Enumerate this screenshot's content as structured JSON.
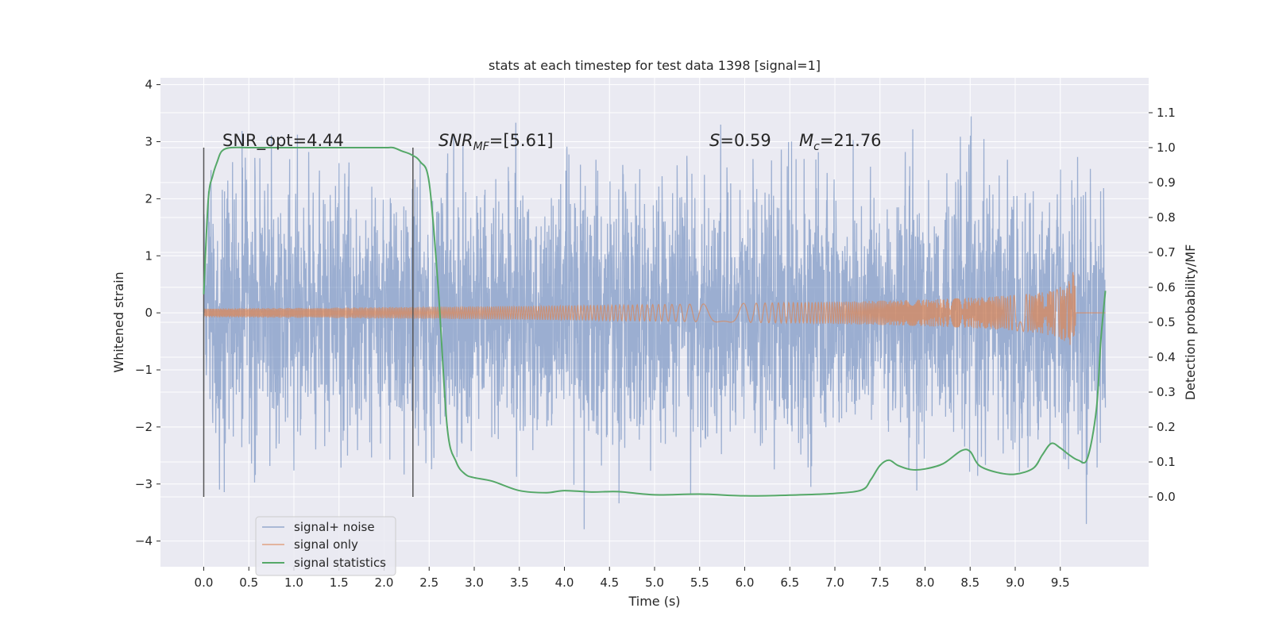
{
  "chart_data": {
    "type": "line",
    "title": "stats at each timestep for test data 1398 [signal=1]",
    "xlabel": "Time (s)",
    "ylabel_left": "Whitened strain",
    "ylabel_right": "Detection probability/MF",
    "xlim": [
      -0.48,
      10.48
    ],
    "ylim_left": [
      -4.45,
      4.12
    ],
    "ylim_right": [
      -0.2,
      1.2
    ],
    "x_ticks": [
      0.0,
      0.5,
      1.0,
      1.5,
      2.0,
      2.5,
      3.0,
      3.5,
      4.0,
      4.5,
      5.0,
      5.5,
      6.0,
      6.5,
      7.0,
      7.5,
      8.0,
      8.5,
      9.0,
      9.5
    ],
    "x_tick_labels": [
      "0.0",
      "0.5",
      "1.0",
      "1.5",
      "2.0",
      "2.5",
      "3.0",
      "3.5",
      "4.0",
      "4.5",
      "5.0",
      "5.5",
      "6.0",
      "6.5",
      "7.0",
      "7.5",
      "8.0",
      "8.5",
      "9.0",
      "9.5"
    ],
    "y_left_ticks": [
      -4,
      -3,
      -2,
      -1,
      0,
      1,
      2,
      3,
      4
    ],
    "y_left_tick_labels": [
      "−4",
      "−3",
      "−2",
      "−1",
      "0",
      "1",
      "2",
      "3",
      "4"
    ],
    "y_right_ticks": [
      0.0,
      0.1,
      0.2,
      0.3,
      0.4,
      0.5,
      0.6,
      0.7,
      0.8,
      0.9,
      1.0,
      1.1
    ],
    "y_right_tick_labels": [
      "0.0",
      "0.1",
      "0.2",
      "0.3",
      "0.4",
      "0.5",
      "0.6",
      "0.7",
      "0.8",
      "0.9",
      "1.0",
      "1.1"
    ],
    "grid": true,
    "legend_position": "lower-left",
    "annotations": {
      "snr_opt": "SNR_opt=4.44",
      "snr_mf_base": "SNR",
      "snr_mf_sub": "MF",
      "snr_mf_value": "=[5.61]",
      "s_label": "S",
      "s_value": "=0.59",
      "mc_base": "M",
      "mc_sub": "c",
      "mc_value": "=21.76"
    },
    "vertical_markers": [
      0.0,
      2.32
    ],
    "noise_span": [
      0.0,
      10.0
    ],
    "noise_core_amplitude": 1.1,
    "noise_extreme_amplitude": 3.7,
    "series": [
      {
        "name": "signal+ noise",
        "color": "#4c72b0",
        "axis": "left"
      },
      {
        "name": "signal only",
        "color": "#dd8452",
        "axis": "left",
        "chirp_end": 9.67,
        "chirp_peak": 0.78
      },
      {
        "name": "signal statistics",
        "color": "#55a868",
        "axis": "right",
        "x": [
          0.0,
          0.05,
          0.1,
          0.15,
          0.2,
          0.3,
          0.5,
          1.0,
          1.5,
          2.0,
          2.1,
          2.2,
          2.3,
          2.4,
          2.5,
          2.6,
          2.7,
          2.8,
          2.9,
          3.0,
          3.2,
          3.5,
          3.8,
          4.0,
          4.3,
          4.6,
          5.0,
          5.5,
          6.0,
          6.5,
          7.0,
          7.3,
          7.4,
          7.5,
          7.6,
          7.7,
          7.85,
          8.0,
          8.2,
          8.4,
          8.5,
          8.6,
          8.8,
          9.0,
          9.2,
          9.3,
          9.4,
          9.5,
          9.6,
          9.7,
          9.8,
          9.9,
          9.95,
          10.0
        ],
        "y": [
          0.58,
          0.85,
          0.92,
          0.96,
          0.99,
          1.0,
          1.0,
          1.0,
          1.0,
          1.0,
          1.0,
          0.99,
          0.98,
          0.96,
          0.9,
          0.6,
          0.2,
          0.1,
          0.065,
          0.055,
          0.045,
          0.018,
          0.012,
          0.018,
          0.014,
          0.015,
          0.006,
          0.008,
          0.003,
          0.005,
          0.01,
          0.02,
          0.05,
          0.09,
          0.105,
          0.09,
          0.078,
          0.08,
          0.095,
          0.132,
          0.13,
          0.09,
          0.07,
          0.065,
          0.082,
          0.12,
          0.153,
          0.14,
          0.12,
          0.105,
          0.11,
          0.25,
          0.45,
          0.59
        ]
      }
    ]
  }
}
